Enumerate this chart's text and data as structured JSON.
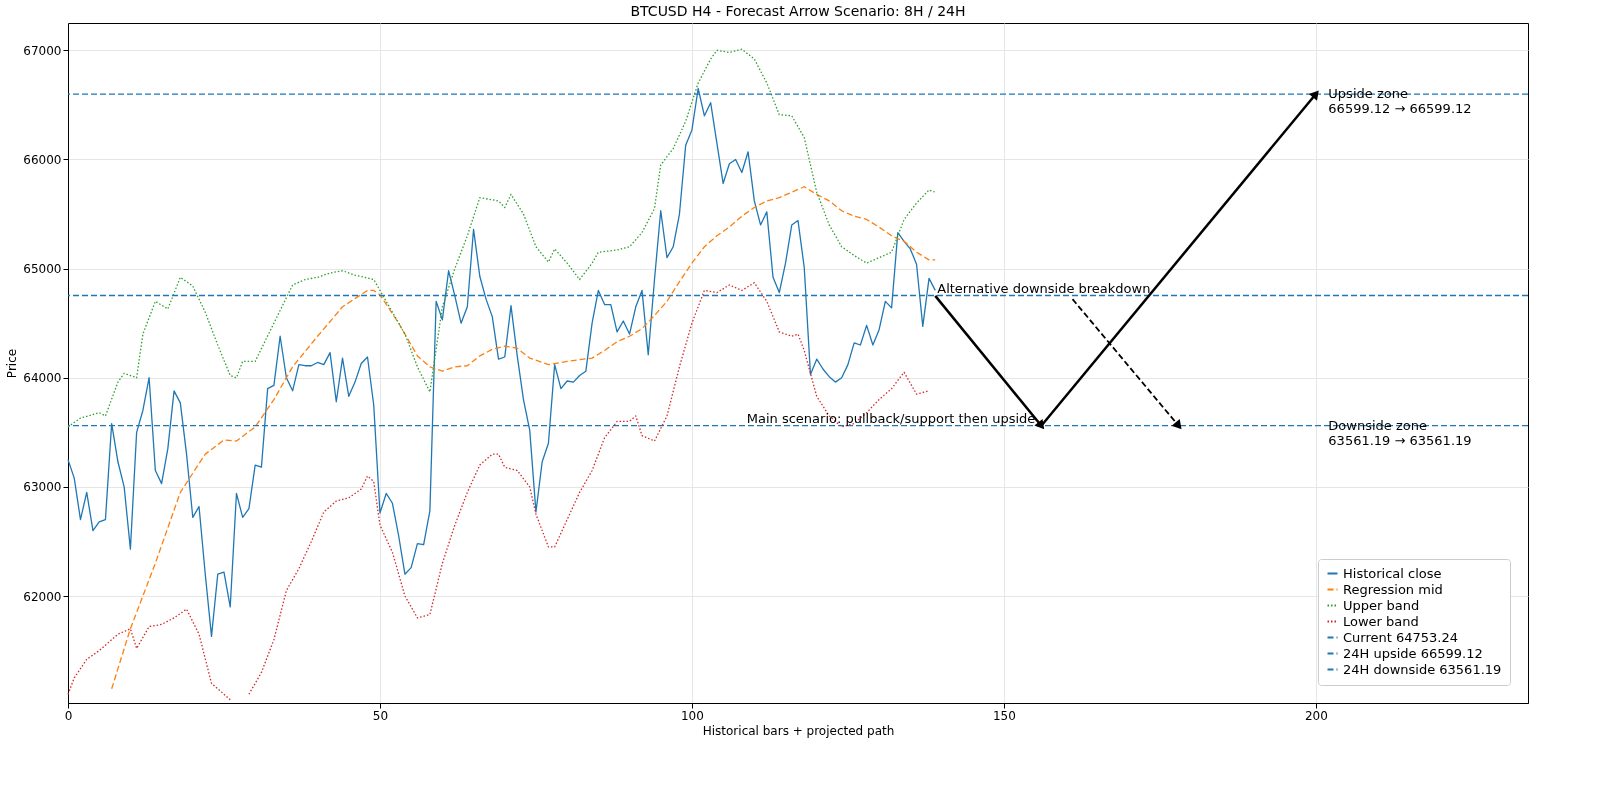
{
  "chart_data": {
    "type": "line",
    "title": "BTCUSD H4 - Forecast Arrow Scenario: 8H / 24H",
    "xlabel": "Historical bars + projected path",
    "ylabel": "Price",
    "xlim": [
      0,
      234
    ],
    "ylim": [
      61020,
      67250
    ],
    "xticks": [
      0,
      50,
      100,
      150,
      200
    ],
    "yticks": [
      62000,
      63000,
      64000,
      65000,
      66000,
      67000
    ],
    "grid": true,
    "legend": "bottom right",
    "marker": "none",
    "series": [
      {
        "name": "Historical close",
        "color": "#1f77b4",
        "line_style": "solid",
        "x": [
          0,
          1,
          2,
          3,
          4,
          5,
          6,
          7,
          8,
          9,
          10,
          11,
          12,
          13,
          14,
          15,
          16,
          17,
          18,
          19,
          20,
          21,
          22,
          23,
          24,
          25,
          26,
          27,
          28,
          29,
          30,
          31,
          32,
          33,
          34,
          35,
          36,
          37,
          38,
          39,
          40,
          41,
          42,
          43,
          44,
          45,
          46,
          47,
          48,
          49,
          50,
          51,
          52,
          53,
          54,
          55,
          56,
          57,
          58,
          59,
          60,
          61,
          62,
          63,
          64,
          65,
          66,
          67,
          68,
          69,
          70,
          71,
          72,
          73,
          74,
          75,
          76,
          77,
          78,
          79,
          80,
          81,
          82,
          83,
          84,
          85,
          86,
          87,
          88,
          89,
          90,
          91,
          92,
          93,
          94,
          95,
          96,
          97,
          98,
          99,
          100,
          101,
          102,
          103,
          104,
          105,
          106,
          107,
          108,
          109,
          110,
          111,
          112,
          113,
          114,
          115,
          116,
          117,
          118,
          119,
          120,
          121,
          122,
          123,
          124,
          125,
          126,
          127,
          128,
          129,
          130,
          131,
          132,
          133,
          134,
          135,
          136,
          137,
          138,
          139
        ],
        "values": [
          63250,
          63080,
          62700,
          62950,
          62600,
          62680,
          62700,
          63580,
          63230,
          63000,
          62430,
          63500,
          63700,
          64000,
          63150,
          63030,
          63350,
          63880,
          63770,
          63300,
          62720,
          62820,
          62200,
          61630,
          62200,
          62220,
          61900,
          62940,
          62720,
          62800,
          63200,
          63180,
          63900,
          63930,
          64380,
          64000,
          63880,
          64120,
          64110,
          64110,
          64140,
          64120,
          64230,
          63780,
          64180,
          63830,
          63960,
          64130,
          64190,
          63750,
          62760,
          62940,
          62850,
          62550,
          62200,
          62260,
          62480,
          62470,
          62780,
          64700,
          64530,
          64980,
          64750,
          64500,
          64650,
          65360,
          64930,
          64720,
          64560,
          64170,
          64190,
          64660,
          64200,
          63800,
          63520,
          62770,
          63230,
          63400,
          64120,
          63900,
          63970,
          63960,
          64020,
          64060,
          64500,
          64800,
          64670,
          64670,
          64420,
          64520,
          64400,
          64650,
          64800,
          64210,
          64900,
          65530,
          65100,
          65200,
          65500,
          66130,
          66270,
          66650,
          66400,
          66520,
          66150,
          65780,
          65960,
          66000,
          65880,
          66070,
          65620,
          65400,
          65520,
          64920,
          64780,
          65050,
          65400,
          65440,
          65010,
          64030,
          64170,
          64080,
          64010,
          63960,
          64000,
          64120,
          64320,
          64300,
          64480,
          64300,
          64440,
          64700,
          64640,
          65330,
          65250,
          65180,
          65040,
          64470,
          64910,
          64800
        ]
      },
      {
        "name": "Regression mid",
        "color": "#ff7f0e",
        "line_style": "dashed",
        "x": [
          7,
          10,
          14,
          18,
          22,
          25,
          27,
          30,
          33,
          36,
          40,
          44,
          48,
          49,
          50,
          53,
          56,
          58,
          60,
          62,
          64,
          66,
          68,
          70,
          72,
          74,
          77,
          80,
          84,
          86,
          88,
          90,
          92,
          94,
          96,
          98,
          100,
          102,
          104,
          106,
          108,
          110,
          112,
          114,
          116,
          118,
          120,
          122,
          124,
          126,
          128,
          130,
          132,
          134,
          136,
          138,
          139
        ],
        "values": [
          61150,
          61700,
          62300,
          62950,
          63300,
          63430,
          63420,
          63550,
          63800,
          64100,
          64380,
          64650,
          64800,
          64800,
          64760,
          64500,
          64200,
          64100,
          64060,
          64100,
          64110,
          64200,
          64260,
          64290,
          64270,
          64180,
          64120,
          64150,
          64180,
          64250,
          64330,
          64380,
          64450,
          64570,
          64700,
          64880,
          65050,
          65200,
          65300,
          65380,
          65480,
          65560,
          65620,
          65650,
          65700,
          65750,
          65680,
          65620,
          65530,
          65480,
          65450,
          65380,
          65300,
          65250,
          65150,
          65080,
          65080
        ]
      },
      {
        "name": "Upper band",
        "color": "#2ca02c",
        "line_style": "dotted",
        "x": [
          0,
          2,
          5,
          6,
          8,
          9,
          11,
          12,
          14,
          16,
          18,
          20,
          22,
          24,
          26,
          27,
          28,
          30,
          33,
          36,
          38,
          40,
          42,
          44,
          46,
          49,
          51,
          54,
          56,
          58,
          60,
          62,
          64,
          66,
          69,
          70,
          71,
          73,
          75,
          77,
          78,
          80,
          82,
          84,
          85,
          88,
          90,
          92,
          94,
          95,
          97,
          99,
          101,
          103,
          104,
          106,
          108,
          110,
          112,
          114,
          116,
          118,
          120,
          122,
          124,
          126,
          128,
          130,
          132,
          134,
          136,
          138,
          139
        ],
        "values": [
          63550,
          63630,
          63680,
          63650,
          63960,
          64040,
          64000,
          64400,
          64700,
          64630,
          64920,
          64840,
          64600,
          64300,
          64020,
          64000,
          64150,
          64150,
          64500,
          64850,
          64900,
          64920,
          64960,
          64980,
          64940,
          64900,
          64700,
          64400,
          64100,
          63870,
          64650,
          65000,
          65300,
          65650,
          65620,
          65560,
          65680,
          65500,
          65200,
          65060,
          65180,
          65050,
          64900,
          65050,
          65150,
          65170,
          65200,
          65330,
          65550,
          65950,
          66100,
          66350,
          66700,
          66920,
          67000,
          66980,
          67010,
          66920,
          66700,
          66410,
          66400,
          66200,
          65700,
          65400,
          65200,
          65120,
          65050,
          65100,
          65150,
          65450,
          65600,
          65720,
          65700
        ]
      },
      {
        "name": "Lower band",
        "color": "#d62728",
        "line_style": "dotted",
        "x": [
          0,
          1,
          3,
          5,
          8,
          10,
          11,
          13,
          15,
          17,
          19,
          21,
          23,
          25,
          26,
          27,
          29,
          31,
          33,
          35,
          37,
          39,
          41,
          43,
          45,
          47,
          48,
          49,
          50,
          52,
          54,
          56,
          58,
          60,
          62,
          64,
          66,
          68,
          69,
          70,
          72,
          74,
          75,
          77,
          78,
          80,
          82,
          84,
          86,
          88,
          90,
          91,
          92,
          94,
          96,
          98,
          100,
          102,
          104,
          106,
          108,
          110,
          112,
          114,
          116,
          117,
          118,
          120,
          122,
          124,
          126,
          128,
          130,
          132,
          134,
          136,
          138
        ],
        "values": [
          61100,
          61250,
          61420,
          61500,
          61650,
          61700,
          61520,
          61720,
          61740,
          61800,
          61880,
          61650,
          61200,
          61100,
          61050,
          null,
          61100,
          61300,
          61600,
          62050,
          62250,
          62500,
          62770,
          62870,
          62900,
          62980,
          63100,
          63050,
          62650,
          62400,
          62000,
          61800,
          61830,
          62300,
          62650,
          62950,
          63200,
          63300,
          63300,
          63180,
          63150,
          63000,
          62750,
          62450,
          62450,
          62700,
          62950,
          63150,
          63450,
          63600,
          63600,
          63650,
          63470,
          63420,
          63650,
          64100,
          64500,
          64800,
          64780,
          64850,
          64800,
          64870,
          64700,
          64420,
          64380,
          64400,
          64250,
          63830,
          63650,
          63550,
          63580,
          63680,
          63800,
          63900,
          64050,
          63850,
          63880
        ]
      },
      {
        "color": "#000000",
        "line_style": "solid",
        "marker": "triangle",
        "x": [
          139,
          156
        ],
        "values": [
          64750,
          63560
        ]
      },
      {
        "color": "#000000",
        "line_style": "solid",
        "marker": "triangle",
        "x": [
          156,
          200
        ],
        "values": [
          63560,
          66600
        ]
      },
      {
        "color": "#000000",
        "line_style": "dashed",
        "marker": "triangle",
        "x": [
          161,
          178
        ],
        "values": [
          64720,
          63560
        ]
      }
    ],
    "ref_lines": [
      {
        "axis": "y",
        "value": 64753.24,
        "label": "Current 64753.24",
        "color": "#1f77b4",
        "line_style": "dashed"
      },
      {
        "axis": "y",
        "value": 66599.12,
        "label": "24H upside 66599.12",
        "color": "#1f77b4",
        "line_style": "dashed"
      },
      {
        "axis": "y",
        "value": 63561.19,
        "label": "24H downside 63561.19",
        "color": "#1f77b4",
        "line_style": "dashed"
      }
    ],
    "annotations": [
      {
        "text": "Main scenario: pullback/support then upside",
        "x": 156,
        "y": 63561.19
      },
      {
        "text": "Alternative downside breakdown",
        "x": 139,
        "y": 64753.24
      },
      {
        "text": "Upside zone\n66599.12 → 66599.12",
        "x": 202,
        "y": 66599.12
      },
      {
        "text": "Downside zone\n63561.19 → 63561.19",
        "x": 202,
        "y": 63561.19
      }
    ]
  }
}
